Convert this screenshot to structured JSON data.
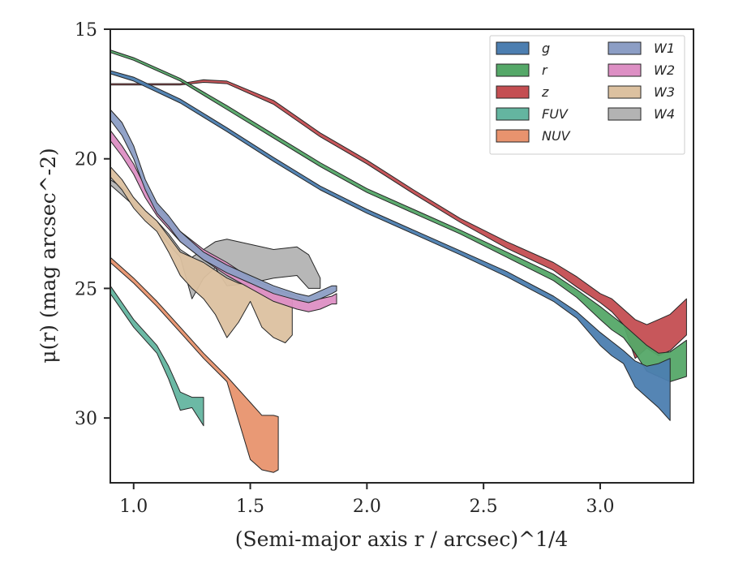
{
  "chart_data": {
    "type": "area",
    "xlabel": "(Semi-major axis r / arcsec)^1/4",
    "ylabel": "μ(r) (mag arcsec^-2)",
    "xlim": [
      0.9,
      3.4
    ],
    "ylim": [
      32.5,
      15
    ],
    "y_inverted": true,
    "x_ticks": [
      1.0,
      1.5,
      2.0,
      2.5,
      3.0
    ],
    "x_tick_labels": [
      "1.0",
      "1.5",
      "2.0",
      "2.5",
      "3.0"
    ],
    "y_ticks": [
      15,
      20,
      25,
      30
    ],
    "y_tick_labels": [
      "15",
      "20",
      "25",
      "30"
    ],
    "grid": false,
    "legend_placement": "top-right",
    "legend_columns": 2,
    "series": [
      {
        "name": "g",
        "color": "#4c7eb0",
        "x": [
          0.9,
          1.0,
          1.2,
          1.4,
          1.6,
          1.8,
          2.0,
          2.2,
          2.4,
          2.6,
          2.8,
          2.9,
          3.0,
          3.05,
          3.1,
          3.15,
          3.2,
          3.25,
          3.3
        ],
        "y_top": [
          16.6,
          16.85,
          17.7,
          18.8,
          19.95,
          21.05,
          21.95,
          22.75,
          23.55,
          24.35,
          25.3,
          25.9,
          26.7,
          27.05,
          27.4,
          27.8,
          28.0,
          27.9,
          27.7
        ],
        "y_bot": [
          16.72,
          17.0,
          17.85,
          18.95,
          20.1,
          21.2,
          22.1,
          22.9,
          23.7,
          24.55,
          25.5,
          26.15,
          27.2,
          27.6,
          27.9,
          28.8,
          29.2,
          29.6,
          30.1
        ]
      },
      {
        "name": "r",
        "color": "#55a868",
        "x": [
          0.9,
          1.0,
          1.2,
          1.4,
          1.6,
          1.8,
          2.0,
          2.2,
          2.4,
          2.6,
          2.8,
          2.9,
          3.0,
          3.05,
          3.1,
          3.15,
          3.2,
          3.25,
          3.3,
          3.37
        ],
        "y_top": [
          15.8,
          16.1,
          16.9,
          17.95,
          19.05,
          20.15,
          21.15,
          21.95,
          22.75,
          23.6,
          24.45,
          25.05,
          25.7,
          26.05,
          26.4,
          26.8,
          27.2,
          27.5,
          27.45,
          27.0
        ],
        "y_bot": [
          15.9,
          16.2,
          17.0,
          18.1,
          19.2,
          20.3,
          21.3,
          22.1,
          22.9,
          23.8,
          24.7,
          25.35,
          26.2,
          26.6,
          26.9,
          27.5,
          28.2,
          28.4,
          28.6,
          28.4
        ]
      },
      {
        "name": "z",
        "color": "#c44e52",
        "x": [
          0.9,
          1.0,
          1.2,
          1.3,
          1.4,
          1.6,
          1.8,
          2.0,
          2.2,
          2.4,
          2.6,
          2.8,
          2.9,
          3.0,
          3.05,
          3.1,
          3.15,
          3.2,
          3.25,
          3.3,
          3.37
        ],
        "y_top": [
          17.1,
          17.1,
          17.1,
          16.95,
          17.0,
          17.75,
          19.0,
          20.05,
          21.2,
          22.3,
          23.2,
          24.0,
          24.55,
          25.2,
          25.4,
          25.8,
          26.2,
          26.4,
          26.2,
          26.0,
          25.4
        ],
        "y_bot": [
          17.15,
          17.15,
          17.15,
          17.05,
          17.1,
          17.9,
          19.15,
          20.2,
          21.35,
          22.45,
          23.45,
          24.3,
          24.95,
          25.55,
          25.9,
          26.4,
          27.7,
          27.3,
          27.6,
          27.4,
          26.8
        ]
      },
      {
        "name": "FUV",
        "color": "#64b5a0",
        "x": [
          0.9,
          1.0,
          1.1,
          1.15,
          1.2,
          1.25,
          1.3
        ],
        "y_top": [
          24.9,
          26.2,
          27.2,
          28.0,
          29.0,
          29.2,
          29.2
        ],
        "y_bot": [
          25.2,
          26.5,
          27.5,
          28.5,
          29.7,
          29.6,
          30.3
        ]
      },
      {
        "name": "NUV",
        "color": "#e8936e",
        "x": [
          0.9,
          1.0,
          1.1,
          1.2,
          1.3,
          1.4,
          1.5,
          1.55,
          1.6,
          1.62
        ],
        "y_top": [
          23.8,
          24.6,
          25.5,
          26.5,
          27.5,
          28.4,
          29.4,
          29.9,
          29.9,
          29.95
        ],
        "y_bot": [
          24.0,
          24.8,
          25.7,
          26.7,
          27.7,
          28.6,
          31.6,
          32.0,
          32.1,
          32.0
        ]
      },
      {
        "name": "W1",
        "color": "#8c9ec5",
        "x": [
          0.9,
          0.95,
          1.0,
          1.05,
          1.1,
          1.15,
          1.2,
          1.3,
          1.4,
          1.5,
          1.6,
          1.7,
          1.75,
          1.8,
          1.85,
          1.87
        ],
        "y_top": [
          18.1,
          18.6,
          19.5,
          20.8,
          21.7,
          22.2,
          22.8,
          23.6,
          24.1,
          24.5,
          24.9,
          25.2,
          25.3,
          25.1,
          24.9,
          24.9
        ],
        "y_bot": [
          18.5,
          19.1,
          20.0,
          21.2,
          22.1,
          22.6,
          23.2,
          23.9,
          24.4,
          24.8,
          25.2,
          25.45,
          25.55,
          25.4,
          25.2,
          25.1
        ]
      },
      {
        "name": "W2",
        "color": "#dd8fc4",
        "x": [
          0.9,
          0.95,
          1.0,
          1.05,
          1.1,
          1.15,
          1.2,
          1.3,
          1.4,
          1.5,
          1.6,
          1.7,
          1.75,
          1.8,
          1.85,
          1.87
        ],
        "y_top": [
          18.9,
          19.5,
          20.2,
          21.1,
          21.8,
          22.3,
          22.8,
          23.5,
          24.0,
          24.6,
          25.0,
          25.3,
          25.5,
          25.4,
          25.3,
          25.2
        ],
        "y_bot": [
          19.3,
          19.9,
          20.6,
          21.5,
          22.2,
          22.7,
          23.2,
          23.9,
          24.5,
          25.0,
          25.5,
          25.8,
          25.9,
          25.8,
          25.6,
          25.6
        ]
      },
      {
        "name": "W3",
        "color": "#dcc1a0",
        "x": [
          0.9,
          0.95,
          1.0,
          1.05,
          1.1,
          1.15,
          1.2,
          1.25,
          1.3,
          1.35,
          1.4,
          1.45,
          1.5,
          1.55,
          1.6,
          1.65,
          1.68
        ],
        "y_top": [
          20.3,
          20.8,
          21.5,
          22.0,
          22.4,
          23.0,
          23.6,
          23.8,
          24.0,
          24.3,
          24.6,
          24.8,
          24.9,
          25.0,
          25.2,
          25.3,
          25.4
        ],
        "y_bot": [
          20.7,
          21.2,
          21.9,
          22.4,
          22.8,
          23.6,
          24.5,
          25.0,
          25.4,
          26.0,
          26.9,
          26.3,
          25.5,
          26.5,
          26.9,
          27.1,
          26.8
        ]
      },
      {
        "name": "W4",
        "color": "#b3b3b3",
        "x": [
          0.9,
          0.95,
          1.0,
          1.05,
          1.1,
          1.15,
          1.2,
          1.25,
          1.3,
          1.35,
          1.4,
          1.5,
          1.6,
          1.7,
          1.75,
          1.8
        ],
        "y_top": [
          20.8,
          21.1,
          21.5,
          22.0,
          22.4,
          22.9,
          23.5,
          23.8,
          23.5,
          23.2,
          23.1,
          23.3,
          23.5,
          23.4,
          23.7,
          24.6
        ],
        "y_bot": [
          21.0,
          21.4,
          21.8,
          22.3,
          22.7,
          23.3,
          23.8,
          25.4,
          24.6,
          24.2,
          24.9,
          24.8,
          24.6,
          24.5,
          25.0,
          25.0
        ]
      }
    ]
  }
}
